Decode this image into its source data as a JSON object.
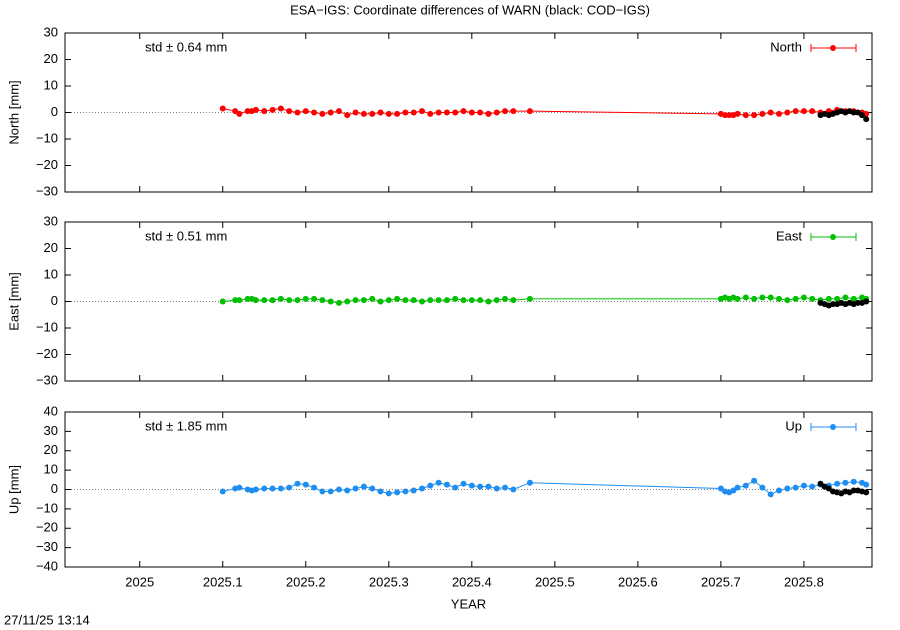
{
  "title": "ESA−IGS: Coordinate differences of WARN (black: COD−IGS)",
  "timestamp": "27/11/25 13:14",
  "chart_data": [
    {
      "type": "line",
      "ylabel": "North [mm]",
      "annotation": "std ± 0.64 mm",
      "legend": "upper right",
      "xlim": [
        2024.91,
        2025.882
      ],
      "xticks": [
        2025,
        2025.1,
        2025.2,
        2025.3,
        2025.4,
        2025.5,
        2025.6,
        2025.7,
        2025.8
      ],
      "ylim": [
        -30,
        30
      ],
      "yticks": [
        30,
        20,
        10,
        0,
        {
          "value": -10,
          "label": "−10"
        },
        {
          "value": -20,
          "label": "−20"
        },
        {
          "value": -30,
          "label": "−30"
        }
      ],
      "series": [
        {
          "name": "North",
          "color": "#ff0000",
          "x": [
            2025.1,
            2025.115,
            2025.12,
            2025.13,
            2025.135,
            2025.14,
            2025.15,
            2025.16,
            2025.17,
            2025.18,
            2025.19,
            2025.2,
            2025.21,
            2025.22,
            2025.23,
            2025.24,
            2025.25,
            2025.26,
            2025.27,
            2025.28,
            2025.29,
            2025.3,
            2025.31,
            2025.32,
            2025.33,
            2025.34,
            2025.35,
            2025.36,
            2025.37,
            2025.38,
            2025.39,
            2025.4,
            2025.41,
            2025.42,
            2025.43,
            2025.44,
            2025.45,
            2025.47,
            2025.7,
            2025.705,
            2025.71,
            2025.715,
            2025.72,
            2025.73,
            2025.74,
            2025.75,
            2025.76,
            2025.77,
            2025.78,
            2025.79,
            2025.8,
            2025.81,
            2025.82,
            2025.83,
            2025.84,
            2025.85,
            2025.86,
            2025.87,
            2025.875
          ],
          "values": [
            1.5,
            0.5,
            -0.5,
            0.5,
            0.5,
            1,
            0.5,
            1,
            1.5,
            0.5,
            0,
            0.5,
            0,
            -0.5,
            0,
            0.5,
            -1,
            0,
            -0.5,
            -0.5,
            0,
            -0.5,
            -0.5,
            0,
            0,
            0.5,
            -0.5,
            0,
            0,
            0,
            0.5,
            0,
            0,
            -0.5,
            0,
            0.5,
            0.5,
            0.5,
            -0.5,
            -1,
            -1,
            -1,
            -0.5,
            -1,
            -1,
            -0.5,
            0,
            -0.5,
            0,
            0.5,
            0.5,
            0.5,
            0,
            0.5,
            1,
            0.5,
            0.5,
            0,
            -0.5
          ]
        },
        {
          "color": "#000000",
          "x": [
            2025.82,
            2025.825,
            2025.83,
            2025.835,
            2025.84,
            2025.845,
            2025.85,
            2025.855,
            2025.86,
            2025.865,
            2025.87,
            2025.875
          ],
          "values": [
            -1,
            -0.5,
            -1,
            -0.5,
            0,
            0.5,
            0,
            0.5,
            0,
            0,
            -1,
            -2.5
          ]
        }
      ]
    },
    {
      "type": "line",
      "ylabel": "East [mm]",
      "annotation": "std ± 0.51 mm",
      "legend": "upper right",
      "xlim": [
        2024.91,
        2025.882
      ],
      "xticks": [
        2025,
        2025.1,
        2025.2,
        2025.3,
        2025.4,
        2025.5,
        2025.6,
        2025.7,
        2025.8
      ],
      "ylim": [
        -30,
        30
      ],
      "yticks": [
        30,
        20,
        10,
        0,
        {
          "value": -10,
          "label": "−10"
        },
        {
          "value": -20,
          "label": "−20"
        },
        {
          "value": -30,
          "label": "−30"
        }
      ],
      "series": [
        {
          "name": "East",
          "color": "#00c000",
          "x": [
            2025.1,
            2025.115,
            2025.12,
            2025.13,
            2025.135,
            2025.14,
            2025.15,
            2025.16,
            2025.17,
            2025.18,
            2025.19,
            2025.2,
            2025.21,
            2025.22,
            2025.23,
            2025.24,
            2025.25,
            2025.26,
            2025.27,
            2025.28,
            2025.29,
            2025.3,
            2025.31,
            2025.32,
            2025.33,
            2025.34,
            2025.35,
            2025.36,
            2025.37,
            2025.38,
            2025.39,
            2025.4,
            2025.41,
            2025.42,
            2025.43,
            2025.44,
            2025.45,
            2025.47,
            2025.7,
            2025.705,
            2025.71,
            2025.715,
            2025.72,
            2025.73,
            2025.74,
            2025.75,
            2025.76,
            2025.77,
            2025.78,
            2025.79,
            2025.8,
            2025.81,
            2025.82,
            2025.83,
            2025.84,
            2025.85,
            2025.86,
            2025.87,
            2025.875
          ],
          "values": [
            0,
            0.5,
            0.5,
            1,
            1,
            0.5,
            0.5,
            0.5,
            1,
            0.5,
            0.5,
            1,
            1,
            0.5,
            0,
            -0.5,
            0,
            0.5,
            0.5,
            1,
            0,
            0.5,
            1,
            0.5,
            0.5,
            0,
            0.5,
            0.5,
            0.5,
            1,
            0.5,
            0.5,
            0.5,
            0,
            0.5,
            1,
            0.5,
            1,
            1,
            1.5,
            1,
            1.5,
            1,
            1.5,
            1,
            1.5,
            1.5,
            1,
            0.5,
            1,
            1.5,
            1,
            0.5,
            1,
            1,
            1.5,
            1,
            1.5,
            1
          ]
        },
        {
          "color": "#000000",
          "x": [
            2025.82,
            2025.825,
            2025.83,
            2025.835,
            2025.84,
            2025.845,
            2025.85,
            2025.855,
            2025.86,
            2025.865,
            2025.87,
            2025.875
          ],
          "values": [
            -0.5,
            -1,
            -1.5,
            -1,
            -1,
            -0.5,
            -1,
            -0.5,
            -1,
            -0.5,
            -0.5,
            0
          ]
        }
      ]
    },
    {
      "type": "line",
      "ylabel": "Up [mm]",
      "xlabel": "YEAR",
      "annotation": "std ± 1.85 mm",
      "legend": "upper right",
      "xlim": [
        2024.91,
        2025.882
      ],
      "xticks": [
        2025,
        2025.1,
        2025.2,
        2025.3,
        2025.4,
        2025.5,
        2025.6,
        2025.7,
        2025.8
      ],
      "ylim": [
        -40,
        40
      ],
      "yticks": [
        40,
        30,
        20,
        10,
        0,
        {
          "value": -10,
          "label": "−10"
        },
        {
          "value": -20,
          "label": "−20"
        },
        {
          "value": -30,
          "label": "−30"
        },
        {
          "value": -40,
          "label": "−40"
        }
      ],
      "series": [
        {
          "name": "Up",
          "color": "#1e8ff0",
          "x": [
            2025.1,
            2025.115,
            2025.12,
            2025.13,
            2025.135,
            2025.14,
            2025.15,
            2025.16,
            2025.17,
            2025.18,
            2025.19,
            2025.2,
            2025.21,
            2025.22,
            2025.23,
            2025.24,
            2025.25,
            2025.26,
            2025.27,
            2025.28,
            2025.29,
            2025.3,
            2025.31,
            2025.32,
            2025.33,
            2025.34,
            2025.35,
            2025.36,
            2025.37,
            2025.38,
            2025.39,
            2025.4,
            2025.41,
            2025.42,
            2025.43,
            2025.44,
            2025.45,
            2025.47,
            2025.7,
            2025.705,
            2025.71,
            2025.715,
            2025.72,
            2025.73,
            2025.74,
            2025.75,
            2025.76,
            2025.77,
            2025.78,
            2025.79,
            2025.8,
            2025.81,
            2025.82,
            2025.83,
            2025.84,
            2025.85,
            2025.86,
            2025.87,
            2025.875
          ],
          "values": [
            -1,
            0.5,
            1,
            0,
            -0.5,
            0,
            0.5,
            0.5,
            0.5,
            1,
            3,
            2.5,
            1,
            -1,
            -1,
            0,
            -0.5,
            0.5,
            1.5,
            0.5,
            -1,
            -2,
            -1.5,
            -1,
            -0.5,
            0.5,
            2,
            3.5,
            2.5,
            1,
            3,
            2,
            1.5,
            1.5,
            0.5,
            1,
            0,
            3.5,
            0.5,
            -1,
            -1.5,
            -0.5,
            1,
            2,
            4.5,
            1,
            -2.5,
            -0.5,
            0.5,
            1,
            2,
            1.5,
            2.5,
            2,
            3,
            3.5,
            4,
            3.5,
            2.5
          ]
        },
        {
          "color": "#000000",
          "x": [
            2025.82,
            2025.825,
            2025.83,
            2025.835,
            2025.84,
            2025.845,
            2025.85,
            2025.855,
            2025.86,
            2025.865,
            2025.87,
            2025.875
          ],
          "values": [
            3,
            1.5,
            0.5,
            -1,
            -1.5,
            -2,
            -1,
            -1.5,
            -0.5,
            -0.5,
            -1,
            -1.5
          ]
        }
      ]
    }
  ]
}
